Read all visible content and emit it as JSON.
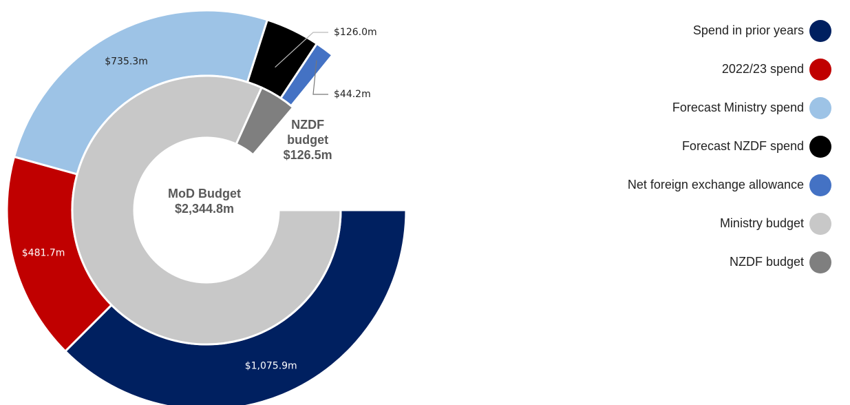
{
  "chart_data": {
    "type": "nested-donut",
    "rings": [
      {
        "categories": [
          "Spend in prior years",
          "2022/23 spend",
          "Forecast Ministry spend",
          "Forecast NZDF spend",
          "Net foreign exchange allowance"
        ],
        "values": [
          1075.9,
          481.7,
          735.3,
          126.0,
          44.2
        ],
        "value_labels": [
          "$1,075.9m",
          "$481.7m",
          "$735.3m",
          "$126.0m",
          "$44.2m"
        ],
        "colors": [
          "#002060",
          "#c00000",
          "#9dc3e6",
          "#000000",
          "#4472c4"
        ]
      },
      {
        "categories": [
          "Ministry budget",
          "NZDF budget"
        ],
        "ring_labels": [
          "MoD Budget",
          "NZDF budget"
        ],
        "values": [
          2344.8,
          126.5
        ],
        "value_labels": [
          "$2,344.8m",
          "$126.5m"
        ],
        "colors": [
          "#c8c8c8",
          "#7f7f7f"
        ]
      }
    ],
    "legend": "right"
  }
}
